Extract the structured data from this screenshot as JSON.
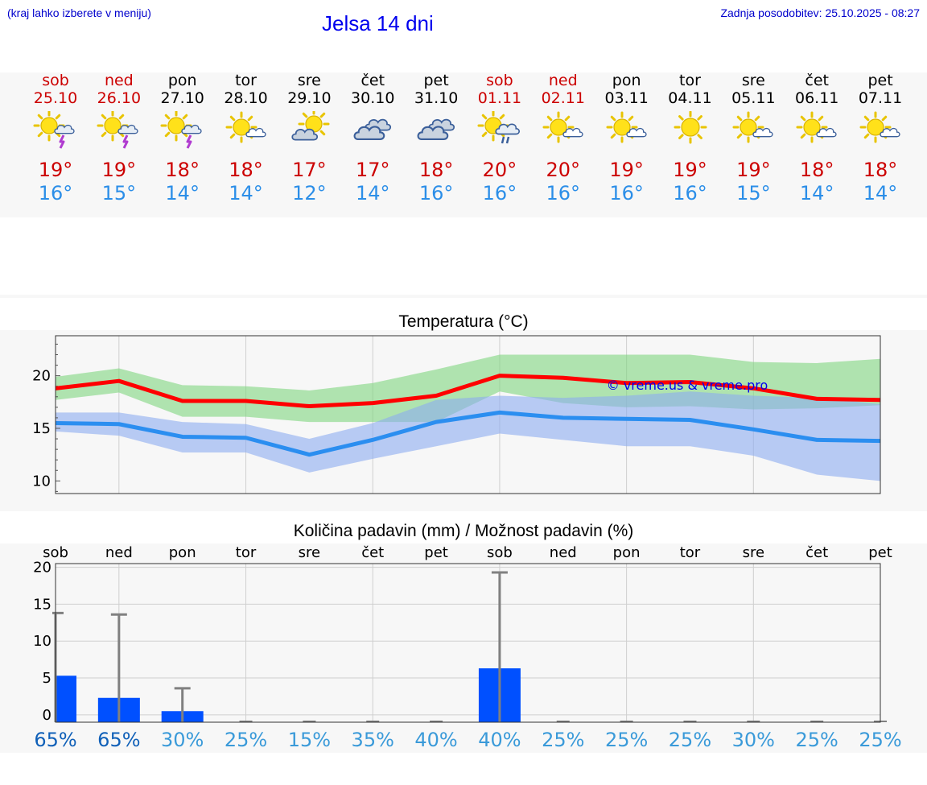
{
  "header": {
    "location_hint": "(kraj lahko izberete v meniju)",
    "title": "Jelsa 14 dni",
    "updated": "Zadnja posodobitev: 25.10.2025 - 08:27"
  },
  "days": [
    {
      "name": "sob",
      "date": "25.10",
      "weekend": true,
      "icon": "sun-cloud-thunder-icon",
      "tmax": "19°",
      "tmin": "16°"
    },
    {
      "name": "ned",
      "date": "26.10",
      "weekend": true,
      "icon": "sun-cloud-thunder-icon",
      "tmax": "19°",
      "tmin": "15°"
    },
    {
      "name": "pon",
      "date": "27.10",
      "weekend": false,
      "icon": "sun-cloud-thunder-icon",
      "tmax": "18°",
      "tmin": "14°"
    },
    {
      "name": "tor",
      "date": "28.10",
      "weekend": false,
      "icon": "sun-small-cloud-icon",
      "tmax": "18°",
      "tmin": "14°"
    },
    {
      "name": "sre",
      "date": "29.10",
      "weekend": false,
      "icon": "sun-behind-cloud-icon",
      "tmax": "17°",
      "tmin": "12°"
    },
    {
      "name": "čet",
      "date": "30.10",
      "weekend": false,
      "icon": "cloudy-icon",
      "tmax": "17°",
      "tmin": "14°"
    },
    {
      "name": "pet",
      "date": "31.10",
      "weekend": false,
      "icon": "cloudy-icon",
      "tmax": "18°",
      "tmin": "16°"
    },
    {
      "name": "sob",
      "date": "01.11",
      "weekend": true,
      "icon": "sun-cloud-rain-icon",
      "tmax": "20°",
      "tmin": "16°"
    },
    {
      "name": "ned",
      "date": "02.11",
      "weekend": true,
      "icon": "sun-small-cloud-icon",
      "tmax": "20°",
      "tmin": "16°"
    },
    {
      "name": "pon",
      "date": "03.11",
      "weekend": false,
      "icon": "sun-small-cloud-icon",
      "tmax": "19°",
      "tmin": "16°"
    },
    {
      "name": "tor",
      "date": "04.11",
      "weekend": false,
      "icon": "sun-icon",
      "tmax": "19°",
      "tmin": "16°"
    },
    {
      "name": "sre",
      "date": "05.11",
      "weekend": false,
      "icon": "sun-small-cloud-icon",
      "tmax": "19°",
      "tmin": "15°"
    },
    {
      "name": "čet",
      "date": "06.11",
      "weekend": false,
      "icon": "sun-small-cloud-icon",
      "tmax": "18°",
      "tmin": "14°"
    },
    {
      "name": "pet",
      "date": "07.11",
      "weekend": false,
      "icon": "sun-small-cloud-icon",
      "tmax": "18°",
      "tmin": "14°"
    }
  ],
  "chart_data": [
    {
      "type": "line",
      "title": "Temperatura (°C)",
      "watermark": "© vreme.us & vreme.pro",
      "ylim": [
        8.8,
        23.8
      ],
      "yticks": [
        10,
        15,
        20
      ],
      "grid": true,
      "x_index": [
        0,
        1,
        2,
        3,
        4,
        5,
        6,
        7,
        8,
        9,
        10,
        11,
        12,
        13
      ],
      "series": [
        {
          "values": [
            18.8,
            19.5,
            17.6,
            17.6,
            17.1,
            17.4,
            18.1,
            20.0,
            19.8,
            19.3,
            19.4,
            18.8,
            17.8,
            17.7
          ],
          "color": "#ff0000"
        },
        {
          "values": [
            15.5,
            15.4,
            14.2,
            14.1,
            12.5,
            13.9,
            15.6,
            16.5,
            16.0,
            15.9,
            15.8,
            14.9,
            13.9,
            13.8
          ],
          "color": "#2b8ef0"
        }
      ],
      "bands": [
        {
          "color": "#7fd67f",
          "upper": [
            19.9,
            20.7,
            19.1,
            19.0,
            18.6,
            19.3,
            20.6,
            22.0,
            22.0,
            22.0,
            22.0,
            21.3,
            21.2,
            21.6
          ],
          "lower": [
            17.7,
            18.4,
            16.1,
            16.1,
            15.6,
            15.6,
            15.6,
            18.5,
            17.4,
            17.0,
            17.1,
            16.8,
            16.9,
            17.2
          ]
        },
        {
          "color": "#8cacf0",
          "upper": [
            16.5,
            16.5,
            15.6,
            15.4,
            14.0,
            15.5,
            17.7,
            18.1,
            17.9,
            18.1,
            18.5,
            18.1,
            17.9,
            17.3
          ],
          "lower": [
            14.7,
            14.3,
            12.7,
            12.7,
            10.8,
            12.1,
            13.3,
            14.5,
            13.9,
            13.3,
            13.3,
            12.4,
            10.6,
            10.0
          ]
        }
      ]
    },
    {
      "type": "bar",
      "title": "Količina padavin (mm) / Možnost padavin (%)",
      "categories": [
        "sob",
        "ned",
        "pon",
        "tor",
        "sre",
        "čet",
        "pet",
        "sob",
        "ned",
        "pon",
        "tor",
        "sre",
        "čet",
        "pet"
      ],
      "ylim": [
        -1,
        20.5
      ],
      "yticks": [
        0,
        5,
        10,
        15,
        20
      ],
      "values": [
        5.3,
        2.3,
        0.5,
        0,
        0,
        0,
        0,
        6.3,
        0,
        0,
        0,
        0,
        0,
        0
      ],
      "error_max": [
        13.8,
        13.6,
        3.6,
        0,
        0,
        0,
        0,
        19.3,
        0,
        0,
        0,
        0,
        0,
        0
      ],
      "probability": [
        "65%",
        "65%",
        "30%",
        "25%",
        "15%",
        "35%",
        "40%",
        "40%",
        "25%",
        "25%",
        "25%",
        "30%",
        "25%",
        "25%"
      ],
      "bar_color": "#0050ff",
      "error_color": "#808080",
      "prob_color_high": "#1060b8",
      "prob_color_low": "#3a9ad9"
    }
  ]
}
